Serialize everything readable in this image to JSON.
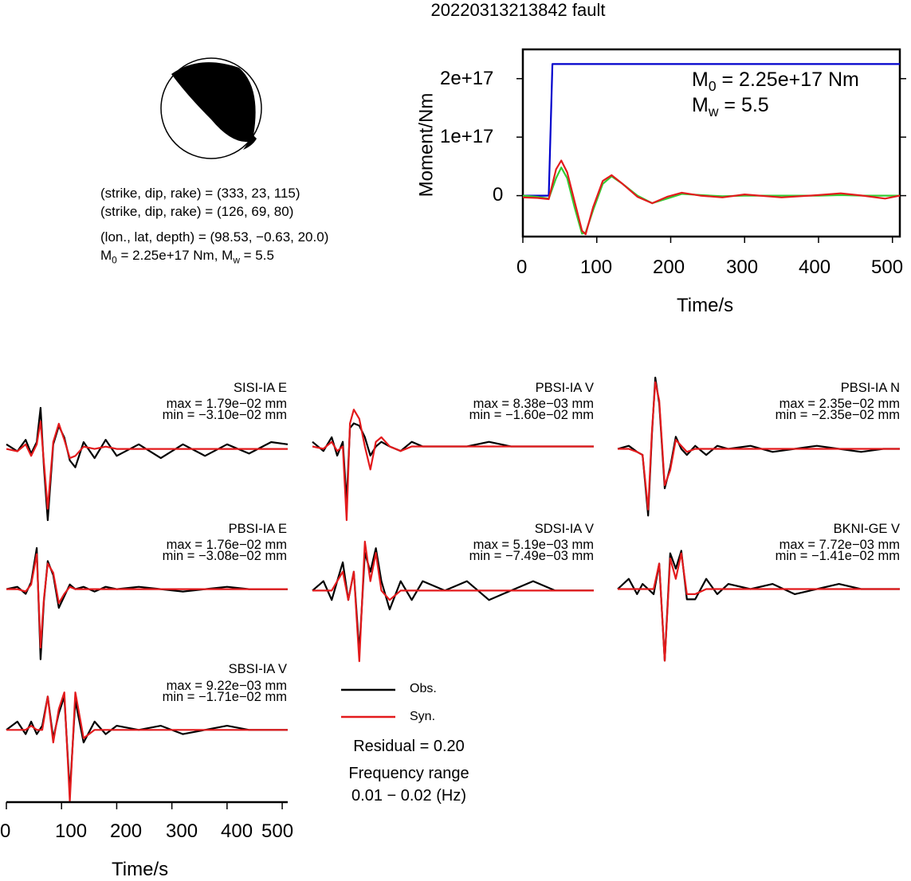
{
  "title": "20220313213842 fault",
  "mechanism": {
    "plane1": "(strike, dip, rake) = (333, 23, 115)",
    "plane2": "(strike, dip, rake) = (126, 69, 80)",
    "location": "(lon., lat, depth) = (98.53, −0.63, 20.0)",
    "m0_prefix": "M",
    "m0_sub": "0",
    "m0_rest": " = 2.25e+17 Nm, M",
    "mw_sub": "w",
    "mw_rest": " = 5.5"
  },
  "moment_panel": {
    "ylabel": "Moment/Nm",
    "xlabel": "Time/s",
    "annot_m0_main": "M",
    "annot_m0_sub": "0",
    "annot_m0_rest": " = 2.25e+17 Nm",
    "annot_mw_main": "M",
    "annot_mw_sub": "w",
    "annot_mw_rest": " = 5.5",
    "xticks": [
      "0",
      "100",
      "200",
      "300",
      "400",
      "500"
    ],
    "yticks": [
      "0",
      "1e+17",
      "2e+17"
    ]
  },
  "bottom_axis": {
    "xlabel": "Time/s",
    "xticks": [
      "0",
      "100",
      "200",
      "300",
      "400",
      "500"
    ]
  },
  "legend": {
    "obs": "Obs.",
    "syn": "Syn.",
    "residual": "Residual = 0.20",
    "freq_title": "Frequency range",
    "freq_value": "0.01 − 0.02 (Hz)"
  },
  "colors": {
    "observed": "#000000",
    "synthetic": "#e31a1c",
    "moment_step": "#0000cc",
    "moment_rate_green": "#33cc33",
    "moment_rate_red": "#e31a1c"
  },
  "chart_data": [
    {
      "type": "line",
      "title": "",
      "xlabel": "Time/s",
      "ylabel": "Moment/Nm",
      "xlim": [
        0,
        510
      ],
      "ylim": [
        -7e+16,
        2.5e+17
      ],
      "series": [
        {
          "color": "blue",
          "x": [
            0,
            35,
            40,
            510
          ],
          "y": [
            0,
            0,
            2.25e+17,
            2.25e+17
          ]
        },
        {
          "color": "green",
          "x": [
            0,
            20,
            35,
            45,
            52,
            60,
            70,
            80,
            85,
            95,
            108,
            120,
            135,
            155,
            175,
            195,
            215,
            240,
            270,
            300,
            350,
            400,
            430,
            460,
            510
          ],
          "y": [
            0,
            -2000000000000000.0,
            -5000000000000000.0,
            3e+16,
            4.8e+16,
            3e+16,
            -2e+16,
            -6.5e+16,
            -6.3e+16,
            -2.5e+16,
            2e+16,
            3.3e+16,
            2e+16,
            0,
            -1.3e+16,
            -5000000000000000.0,
            3000000000000000.0,
            1000000000000000.0,
            -1000000000000000.0,
            0,
            0,
            0,
            1000000000000000.0,
            0,
            0
          ]
        },
        {
          "color": "red",
          "x": [
            0,
            20,
            35,
            45,
            52,
            60,
            70,
            80,
            85,
            95,
            108,
            120,
            135,
            155,
            175,
            195,
            215,
            240,
            270,
            300,
            350,
            400,
            430,
            460,
            490,
            510
          ],
          "y": [
            -3000000000000000.0,
            -4000000000000000.0,
            -6000000000000000.0,
            4.5e+16,
            6e+16,
            4e+16,
            -1e+16,
            -6e+16,
            -6.6e+16,
            -2e+16,
            2.5e+16,
            3.5e+16,
            2e+16,
            -2000000000000000.0,
            -1.3e+16,
            -2000000000000000.0,
            5000000000000000.0,
            0,
            -3000000000000000.0,
            2000000000000000.0,
            -3000000000000000.0,
            1000000000000000.0,
            4000000000000000.0,
            0,
            -5000000000000000.0,
            0
          ]
        }
      ]
    },
    {
      "type": "line",
      "title": "SISI-IA E",
      "max": "max = 1.79e−02 mm",
      "min": "min = −3.10e−02 mm",
      "xlim": [
        0,
        510
      ],
      "ylim": [
        -0.031,
        0.0179
      ],
      "series": [
        {
          "name": "Obs.",
          "x": [
            0,
            20,
            35,
            45,
            55,
            62,
            68,
            75,
            85,
            95,
            105,
            115,
            125,
            140,
            160,
            180,
            200,
            240,
            280,
            320,
            360,
            400,
            440,
            480,
            510
          ],
          "y": [
            0.002,
            -0.001,
            0.004,
            -0.002,
            0.003,
            0.0179,
            -0.008,
            -0.031,
            0.002,
            0.01,
            0.005,
            -0.005,
            -0.008,
            0.003,
            -0.004,
            0.004,
            -0.003,
            0.002,
            -0.004,
            0.002,
            -0.003,
            0.002,
            -0.002,
            0.003,
            0.002
          ]
        },
        {
          "name": "Syn.",
          "x": [
            0,
            20,
            35,
            45,
            55,
            62,
            68,
            75,
            85,
            95,
            105,
            115,
            125,
            140,
            160,
            180,
            200,
            240,
            280,
            320,
            360,
            400,
            440,
            480,
            510
          ],
          "y": [
            0,
            -0.001,
            0.002,
            -0.003,
            0.002,
            0.012,
            -0.006,
            -0.026,
            0.003,
            0.011,
            0.004,
            -0.004,
            -0.003,
            0.001,
            0,
            0.001,
            0,
            0,
            0,
            0,
            0,
            0,
            0,
            0,
            0
          ]
        }
      ]
    },
    {
      "type": "line",
      "title": "PBSI-IA V",
      "max": "max = 8.38e−03 mm",
      "min": "min = −1.60e−02 mm",
      "xlim": [
        0,
        510
      ],
      "ylim": [
        -0.016,
        0.00838
      ],
      "series": [
        {
          "name": "Obs.",
          "x": [
            0,
            20,
            35,
            45,
            55,
            62,
            68,
            75,
            85,
            95,
            105,
            115,
            125,
            140,
            160,
            180,
            200,
            240,
            280,
            320,
            360,
            400,
            440,
            480,
            510
          ],
          "y": [
            0.001,
            -0.001,
            0.002,
            -0.002,
            0.001,
            -0.012,
            0.004,
            0.005,
            0.0045,
            0.002,
            -0.002,
            0.0,
            0.001,
            0.0,
            -0.001,
            0.001,
            0.0,
            0.0,
            0.0,
            0.001,
            0.0,
            0.0,
            0.0,
            0.0,
            0.0
          ]
        },
        {
          "name": "Syn.",
          "x": [
            0,
            20,
            35,
            45,
            55,
            62,
            68,
            75,
            85,
            95,
            105,
            115,
            125,
            140,
            160,
            180,
            200,
            240,
            280,
            320,
            360,
            400,
            440,
            480,
            510
          ],
          "y": [
            0.0,
            -0.0005,
            0.001,
            -0.001,
            0.0,
            -0.016,
            0.005,
            0.008,
            0.006,
            0.0,
            -0.005,
            0.001,
            0.002,
            0.0,
            -0.001,
            0.0,
            0.0,
            0.0,
            0.0,
            0.0,
            0.0,
            0.0,
            0.0,
            0.0,
            0.0
          ]
        }
      ]
    },
    {
      "type": "line",
      "title": "PBSI-IA N",
      "max": "max = 2.35e−02 mm",
      "min": "min = −2.35e−02 mm",
      "xlim": [
        0,
        510
      ],
      "ylim": [
        -0.0235,
        0.0235
      ],
      "series": [
        {
          "name": "Obs.",
          "x": [
            0,
            20,
            35,
            45,
            55,
            62,
            68,
            75,
            85,
            95,
            105,
            115,
            125,
            140,
            160,
            180,
            200,
            240,
            280,
            320,
            360,
            400,
            440,
            480,
            510
          ],
          "y": [
            0.0,
            0.001,
            -0.001,
            -0.002,
            -0.022,
            0.005,
            0.0235,
            0.015,
            -0.013,
            -0.006,
            0.004,
            0.0,
            -0.002,
            0.001,
            -0.002,
            0.001,
            0.0,
            0.001,
            -0.001,
            0.0,
            0.001,
            0.0,
            -0.001,
            0.0,
            0.0
          ]
        },
        {
          "name": "Syn.",
          "x": [
            0,
            20,
            35,
            45,
            55,
            62,
            68,
            75,
            85,
            95,
            105,
            115,
            125,
            140,
            160,
            180,
            200,
            240,
            280,
            320,
            360,
            400,
            440,
            480,
            510
          ],
          "y": [
            0.0,
            0.0,
            -0.001,
            -0.002,
            -0.02,
            0.006,
            0.022,
            0.016,
            -0.012,
            -0.007,
            0.003,
            0.001,
            -0.001,
            0.0,
            0.0,
            0.0,
            0.0,
            0.0,
            0.0,
            0.0,
            0.0,
            0.0,
            0.0,
            0.0,
            0.0
          ]
        }
      ]
    },
    {
      "type": "line",
      "title": "PBSI-IA E",
      "max": "max = 1.76e−02 mm",
      "min": "min = −3.08e−02 mm",
      "xlim": [
        0,
        510
      ],
      "ylim": [
        -0.0308,
        0.0176
      ],
      "series": [
        {
          "name": "Obs.",
          "x": [
            0,
            20,
            35,
            45,
            55,
            62,
            68,
            75,
            85,
            95,
            105,
            115,
            125,
            140,
            160,
            180,
            200,
            240,
            280,
            320,
            360,
            400,
            440,
            480,
            510
          ],
          "y": [
            0.0,
            0.001,
            -0.002,
            0.003,
            0.0176,
            -0.03,
            -0.005,
            0.012,
            0.006,
            -0.008,
            -0.003,
            0.002,
            0.0,
            0.001,
            -0.001,
            0.001,
            0.0,
            0.001,
            0.0,
            -0.001,
            0.0,
            0.001,
            0.0,
            0.0,
            0.0
          ]
        },
        {
          "name": "Syn.",
          "x": [
            0,
            20,
            35,
            45,
            55,
            62,
            68,
            75,
            85,
            95,
            105,
            115,
            125,
            140,
            160,
            180,
            200,
            240,
            280,
            320,
            360,
            400,
            440,
            480,
            510
          ],
          "y": [
            0.0,
            0.0,
            -0.001,
            0.002,
            0.015,
            -0.025,
            -0.004,
            0.011,
            0.007,
            -0.006,
            -0.002,
            0.001,
            0.0,
            0.0,
            0.0,
            0.0,
            0.0,
            0.0,
            0.0,
            0.0,
            0.0,
            0.0,
            0.0,
            0.0,
            0.0
          ]
        }
      ]
    },
    {
      "type": "line",
      "title": "SDSI-IA V",
      "max": "max = 5.19e−03 mm",
      "min": "min = −7.49e−03 mm",
      "xlim": [
        0,
        510
      ],
      "ylim": [
        -0.00749,
        0.00519
      ],
      "series": [
        {
          "name": "Obs.",
          "x": [
            0,
            20,
            35,
            45,
            55,
            65,
            75,
            85,
            95,
            105,
            115,
            125,
            140,
            160,
            180,
            200,
            240,
            280,
            320,
            360,
            400,
            440,
            480,
            510
          ],
          "y": [
            0.0,
            0.001,
            -0.001,
            0.001,
            0.003,
            -0.001,
            0.002,
            -0.0065,
            0.004,
            0.002,
            0.0045,
            0.001,
            -0.002,
            0.001,
            -0.001,
            0.001,
            0.0,
            0.001,
            -0.001,
            0.0,
            0.001,
            0.0,
            0.0,
            0.0
          ]
        },
        {
          "name": "Syn.",
          "x": [
            0,
            20,
            35,
            45,
            55,
            65,
            75,
            85,
            95,
            105,
            115,
            125,
            140,
            160,
            180,
            200,
            240,
            280,
            320,
            360,
            400,
            440,
            480,
            510
          ],
          "y": [
            0.0,
            0.0,
            0.0,
            0.001,
            0.002,
            -0.001,
            0.002,
            -0.0075,
            0.0052,
            0.001,
            0.004,
            0.0,
            -0.001,
            0.0,
            0.0,
            0.0,
            0.0,
            0.0,
            0.0,
            0.0,
            0.0,
            0.0,
            0.0,
            0.0
          ]
        }
      ]
    },
    {
      "type": "line",
      "title": "BKNI-GE V",
      "max": "max = 7.72e−03 mm",
      "min": "min = −1.41e−02 mm",
      "xlim": [
        0,
        510
      ],
      "ylim": [
        -0.0141,
        0.00772
      ],
      "series": [
        {
          "name": "Obs.",
          "x": [
            0,
            20,
            35,
            45,
            55,
            65,
            75,
            85,
            95,
            105,
            115,
            125,
            140,
            160,
            180,
            200,
            240,
            280,
            320,
            360,
            400,
            440,
            480,
            510
          ],
          "y": [
            0.0,
            0.002,
            -0.001,
            0.001,
            0.0,
            -0.001,
            0.005,
            -0.014,
            0.007,
            0.004,
            0.0075,
            -0.002,
            -0.002,
            0.002,
            -0.001,
            0.001,
            0.0,
            0.001,
            -0.001,
            0.0,
            0.001,
            0.0,
            0.0,
            0.0
          ]
        },
        {
          "name": "Syn.",
          "x": [
            0,
            20,
            35,
            45,
            55,
            65,
            75,
            85,
            95,
            105,
            115,
            125,
            140,
            160,
            180,
            200,
            240,
            280,
            320,
            360,
            400,
            440,
            480,
            510
          ],
          "y": [
            0.0,
            0.0,
            0.0,
            0.0,
            0.0,
            0.0,
            0.005,
            -0.014,
            0.006,
            0.002,
            0.007,
            -0.001,
            -0.001,
            0.0,
            0.0,
            0.0,
            0.0,
            0.0,
            0.0,
            0.0,
            0.0,
            0.0,
            0.0,
            0.0
          ]
        }
      ]
    },
    {
      "type": "line",
      "title": "SBSI-IA V",
      "max": "max = 9.22e−03 mm",
      "min": "min = −1.71e−02 mm",
      "xlim": [
        0,
        510
      ],
      "ylim": [
        -0.0171,
        0.00922
      ],
      "series": [
        {
          "name": "Obs.",
          "x": [
            0,
            20,
            35,
            45,
            55,
            65,
            75,
            85,
            95,
            105,
            115,
            125,
            140,
            160,
            180,
            200,
            240,
            280,
            320,
            360,
            400,
            440,
            480,
            510
          ],
          "y": [
            0.0,
            0.002,
            -0.001,
            0.002,
            -0.001,
            0.001,
            0.008,
            -0.002,
            0.004,
            0.008,
            -0.015,
            0.007,
            -0.003,
            0.002,
            -0.001,
            0.001,
            0.0,
            0.001,
            -0.001,
            0.0,
            0.001,
            0.0,
            0.0,
            0.0
          ]
        },
        {
          "name": "Syn.",
          "x": [
            0,
            20,
            35,
            45,
            55,
            65,
            75,
            85,
            95,
            105,
            115,
            125,
            140,
            160,
            180,
            200,
            240,
            280,
            320,
            360,
            400,
            440,
            480,
            510
          ],
          "y": [
            0.0,
            0.0,
            0.0,
            0.001,
            0.0,
            0.0,
            0.008,
            -0.003,
            0.005,
            0.009,
            -0.017,
            0.009,
            -0.002,
            0.0,
            0.0,
            0.0,
            0.0,
            0.0,
            0.0,
            0.0,
            0.0,
            0.0,
            0.0,
            0.0
          ]
        }
      ]
    }
  ]
}
